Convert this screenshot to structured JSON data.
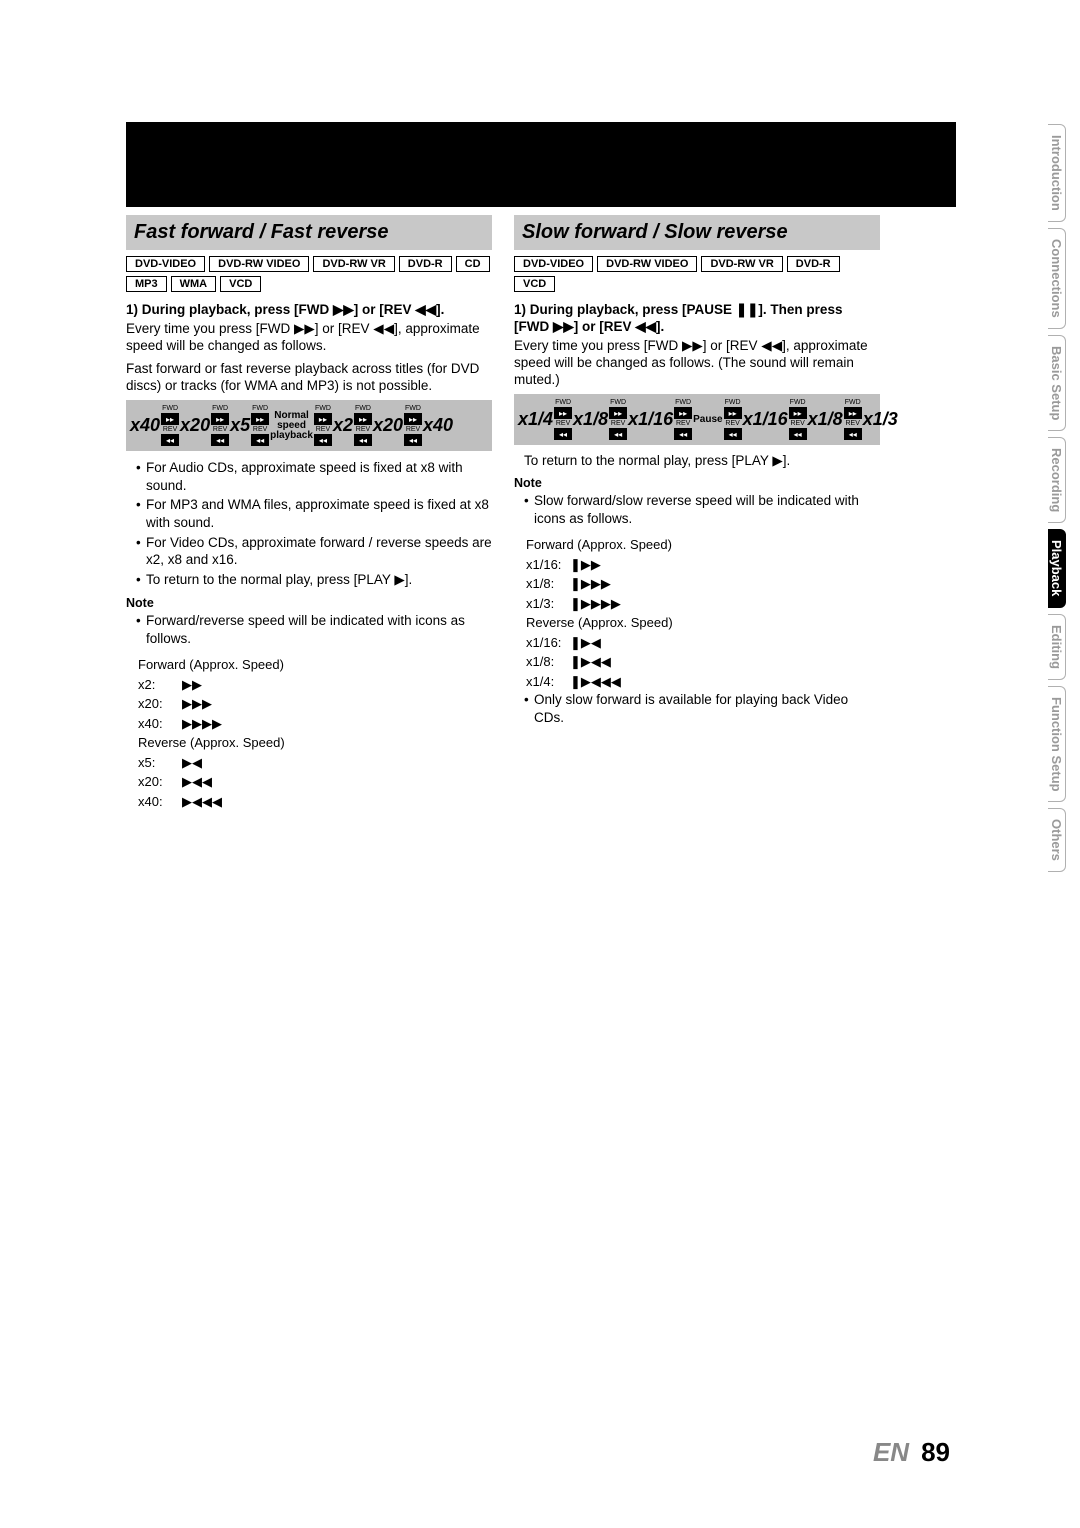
{
  "page": {
    "lang": "EN",
    "number": "89"
  },
  "sidebar": {
    "tabs": [
      {
        "label": "Introduction",
        "active": false
      },
      {
        "label": "Connections",
        "active": false
      },
      {
        "label": "Basic Setup",
        "active": false
      },
      {
        "label": "Recording",
        "active": false
      },
      {
        "label": "Playback",
        "active": true
      },
      {
        "label": "Editing",
        "active": false
      },
      {
        "label": "Function Setup",
        "active": false
      },
      {
        "label": "Others",
        "active": false
      }
    ]
  },
  "left": {
    "title": "Fast forward / Fast reverse",
    "formats": [
      "DVD-VIDEO",
      "DVD-RW VIDEO",
      "DVD-RW VR",
      "DVD-R",
      "CD",
      "MP3",
      "WMA",
      "VCD"
    ],
    "step_head": "1) During playback, press [FWD ▶▶] or [REV ◀◀].",
    "step_body1": "Every time you press [FWD ▶▶] or [REV ◀◀], approximate speed will be changed as follows.",
    "step_body2": "Fast forward or fast reverse playback across titles (for DVD discs) or tracks (for WMA and MP3) is not possible.",
    "speed_seq": [
      "x40",
      "x20",
      "x5",
      "Normal speed playback",
      "x2",
      "x20",
      "x40"
    ],
    "bullets": [
      "For Audio CDs, approximate speed is fixed at x8 with sound.",
      "For MP3 and WMA files, approximate speed is fixed at x8 with sound.",
      "For Video CDs, approximate forward / reverse speeds are x2, x8 and x16.",
      "To return to the normal play, press [PLAY ▶]."
    ],
    "note_title": "Note",
    "note_lead": "Forward/reverse speed will be indicated with icons as follows.",
    "fwd_head": "Forward (Approx. Speed)",
    "fwd_rows": [
      {
        "k": "x2:",
        "v": "▶▶"
      },
      {
        "k": "x20:",
        "v": "▶▶▶"
      },
      {
        "k": "x40:",
        "v": "▶▶▶▶"
      }
    ],
    "rev_head": "Reverse (Approx. Speed)",
    "rev_rows": [
      {
        "k": "x5:",
        "v": "▶◀"
      },
      {
        "k": "x20:",
        "v": "▶◀◀"
      },
      {
        "k": "x40:",
        "v": "▶◀◀◀"
      }
    ]
  },
  "right": {
    "title": "Slow forward / Slow reverse",
    "formats": [
      "DVD-VIDEO",
      "DVD-RW VIDEO",
      "DVD-RW VR",
      "DVD-R",
      "VCD"
    ],
    "step_head": "1) During playback, press [PAUSE ❚❚]. Then press [FWD ▶▶] or [REV ◀◀].",
    "step_body1": "Every time you press [FWD ▶▶] or [REV ◀◀], approximate speed will be changed as follows. (The sound will remain muted.)",
    "speed_seq": [
      "x1/4",
      "x1/8",
      "x1/16",
      "Pause",
      "x1/16",
      "x1/8",
      "x1/3"
    ],
    "return_line": "To return to the normal play, press [PLAY ▶].",
    "note_title": "Note",
    "note_lead": "Slow forward/slow reverse speed will be indicated with icons as follows.",
    "fwd_head": "Forward (Approx. Speed)",
    "fwd_rows": [
      {
        "k": "x1/16:",
        "v": "❚▶▶"
      },
      {
        "k": "x1/8:",
        "v": "❚▶▶▶"
      },
      {
        "k": "x1/3:",
        "v": "❚▶▶▶▶"
      }
    ],
    "rev_head": "Reverse (Approx. Speed)",
    "rev_rows": [
      {
        "k": "x1/16:",
        "v": "❚▶◀"
      },
      {
        "k": "x1/8:",
        "v": "❚▶◀◀"
      },
      {
        "k": "x1/4:",
        "v": "❚▶◀◀◀"
      }
    ],
    "footnote": "Only slow forward is available for playing back Video CDs."
  },
  "colors": {
    "title_bg": "#c8c8c8",
    "strip_bg": "#bfbfbf",
    "tab_inactive": "#9a9a9a",
    "page_en": "#888888"
  }
}
